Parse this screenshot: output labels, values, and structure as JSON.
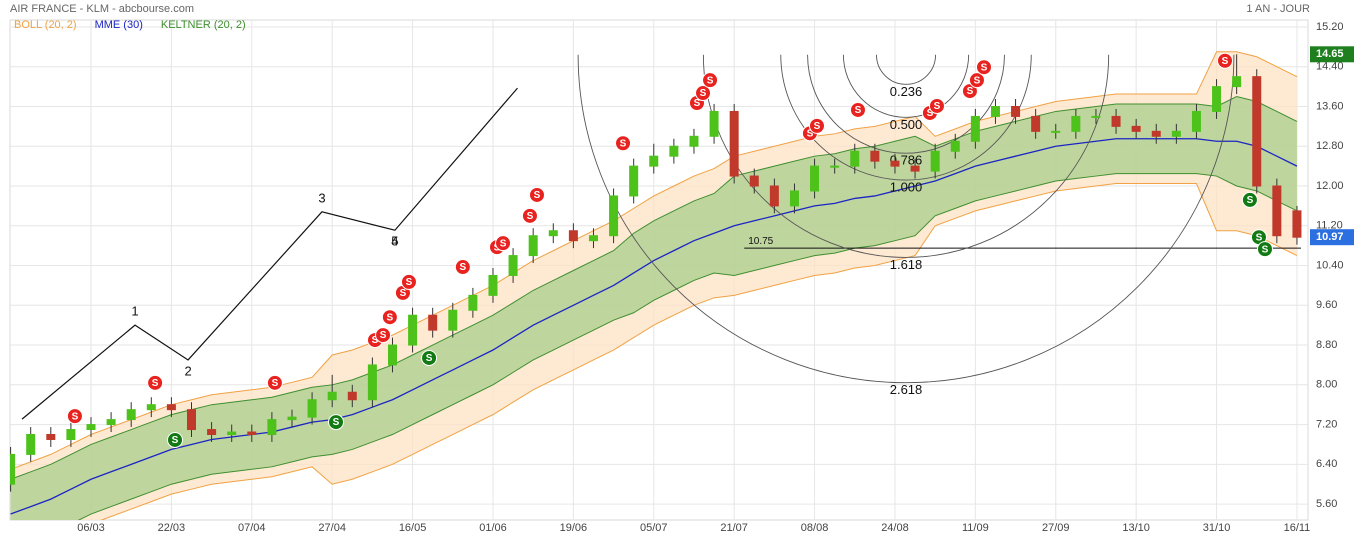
{
  "chart_data": {
    "type": "candlestick",
    "title": "AIR FRANCE - KLM - abcbourse.com",
    "period": "1 AN - JOUR",
    "xlim": [
      -0.03,
      64.55
    ],
    "ylim": [
      5.28,
      15.34
    ],
    "grid": true,
    "xticks": [
      {
        "value": 4,
        "label": "06/03"
      },
      {
        "value": 8,
        "label": "22/03"
      },
      {
        "value": 12,
        "label": "07/04"
      },
      {
        "value": 16,
        "label": "27/04"
      },
      {
        "value": 20,
        "label": "16/05"
      },
      {
        "value": 24,
        "label": "01/06"
      },
      {
        "value": 28,
        "label": "19/06"
      },
      {
        "value": 32,
        "label": "05/07"
      },
      {
        "value": 36,
        "label": "21/07"
      },
      {
        "value": 40,
        "label": "08/08"
      },
      {
        "value": 44,
        "label": "24/08"
      },
      {
        "value": 48,
        "label": "11/09"
      },
      {
        "value": 52,
        "label": "27/09"
      },
      {
        "value": 56,
        "label": "13/10"
      },
      {
        "value": 60,
        "label": "31/10"
      },
      {
        "value": 64,
        "label": "16/11"
      }
    ],
    "yticks": [
      {
        "value": 5.6,
        "label": "5.60"
      },
      {
        "value": 6.4,
        "label": "6.40"
      },
      {
        "value": 7.2,
        "label": "7.20"
      },
      {
        "value": 8.0,
        "label": "8.00"
      },
      {
        "value": 8.8,
        "label": "8.80"
      },
      {
        "value": 9.6,
        "label": "9.60"
      },
      {
        "value": 10.4,
        "label": "10.40"
      },
      {
        "value": 11.2,
        "label": "11.20"
      },
      {
        "value": 12.0,
        "label": "12.00"
      },
      {
        "value": 12.8,
        "label": "12.80"
      },
      {
        "value": 13.6,
        "label": "13.60"
      },
      {
        "value": 14.4,
        "label": "14.40"
      },
      {
        "value": 15.2,
        "label": "15.20"
      }
    ],
    "up_color": "#4cc21a",
    "down_color": "#c0392b",
    "candles": {
      "open": [
        6.0,
        6.6,
        7.0,
        6.9,
        7.1,
        7.2,
        7.3,
        7.5,
        7.6,
        7.5,
        7.1,
        7.0,
        7.05,
        7.0,
        7.3,
        7.35,
        7.7,
        7.85,
        7.7,
        8.4,
        8.8,
        9.4,
        9.1,
        9.5,
        9.8,
        10.2,
        10.6,
        11.0,
        11.1,
        10.9,
        11.0,
        11.8,
        12.4,
        12.6,
        12.8,
        13.0,
        13.5,
        12.2,
        12.0,
        11.6,
        11.9,
        12.4,
        12.4,
        12.7,
        12.5,
        12.4,
        12.3,
        12.7,
        12.9,
        13.4,
        13.6,
        13.4,
        13.1,
        13.1,
        13.4,
        13.4,
        13.2,
        13.1,
        13.0,
        13.1,
        13.5,
        14.0,
        14.2,
        12.0,
        11.5
      ],
      "high": [
        6.75,
        7.15,
        7.15,
        7.25,
        7.35,
        7.45,
        7.65,
        7.75,
        7.75,
        7.65,
        7.25,
        7.2,
        7.2,
        7.45,
        7.5,
        7.85,
        8.2,
        8.0,
        8.55,
        8.95,
        9.55,
        9.55,
        9.65,
        9.95,
        10.35,
        10.75,
        11.15,
        11.25,
        11.25,
        11.15,
        11.95,
        12.55,
        12.85,
        12.95,
        13.15,
        13.65,
        13.65,
        12.35,
        12.15,
        12.05,
        12.55,
        12.55,
        12.85,
        12.85,
        12.65,
        12.55,
        12.85,
        13.05,
        13.55,
        13.75,
        13.75,
        13.55,
        13.25,
        13.55,
        13.55,
        13.55,
        13.35,
        13.25,
        13.25,
        13.65,
        14.15,
        14.65,
        14.35,
        12.15,
        11.6
      ],
      "low": [
        5.85,
        6.45,
        6.75,
        6.75,
        6.95,
        7.05,
        7.15,
        7.35,
        7.35,
        6.95,
        6.85,
        6.85,
        6.85,
        6.85,
        7.15,
        7.2,
        7.55,
        7.55,
        7.55,
        8.25,
        8.65,
        8.95,
        8.95,
        9.35,
        9.65,
        10.05,
        10.45,
        10.85,
        10.75,
        10.75,
        10.85,
        11.65,
        12.25,
        12.45,
        12.65,
        12.85,
        12.05,
        11.85,
        11.45,
        11.45,
        11.75,
        12.25,
        12.25,
        12.35,
        12.25,
        12.15,
        12.15,
        12.55,
        12.75,
        13.25,
        13.25,
        12.95,
        12.95,
        12.95,
        13.25,
        13.05,
        12.95,
        12.85,
        12.85,
        12.95,
        13.35,
        13.85,
        11.85,
        10.85,
        10.82
      ],
      "close": [
        6.6,
        7.0,
        6.9,
        7.1,
        7.2,
        7.3,
        7.5,
        7.6,
        7.5,
        7.1,
        7.0,
        7.05,
        7.0,
        7.3,
        7.35,
        7.7,
        7.85,
        7.7,
        8.4,
        8.8,
        9.4,
        9.1,
        9.5,
        9.8,
        10.2,
        10.6,
        11.0,
        11.1,
        10.9,
        11.0,
        11.8,
        12.4,
        12.6,
        12.8,
        13.0,
        13.5,
        12.2,
        12.0,
        11.6,
        11.9,
        12.4,
        12.4,
        12.7,
        12.5,
        12.4,
        12.3,
        12.7,
        12.9,
        13.4,
        13.6,
        13.4,
        13.1,
        13.1,
        13.4,
        13.4,
        13.2,
        13.1,
        13.0,
        13.1,
        13.5,
        14.0,
        14.2,
        12.0,
        11.0,
        10.97
      ]
    },
    "indicators": [
      {
        "name": "BOLL (20, 2)",
        "kind": "band",
        "color": "#f0a244",
        "fill": "#fde1c4",
        "upper": [
          6.3,
          6.45,
          6.6,
          6.8,
          7.0,
          7.15,
          7.3,
          7.45,
          7.6,
          7.7,
          7.8,
          7.85,
          7.9,
          7.95,
          8.05,
          8.15,
          8.6,
          8.7,
          8.85,
          9.0,
          9.2,
          9.4,
          9.6,
          9.8,
          10.0,
          10.25,
          10.5,
          10.7,
          10.9,
          11.1,
          11.3,
          11.55,
          11.8,
          12.0,
          12.2,
          12.35,
          12.6,
          12.7,
          12.8,
          12.9,
          13.0,
          13.05,
          13.15,
          13.2,
          13.3,
          13.4,
          13.0,
          13.15,
          13.3,
          13.4,
          13.5,
          13.6,
          13.7,
          13.75,
          13.8,
          13.85,
          13.85,
          13.85,
          13.85,
          13.85,
          14.7,
          14.7,
          14.6,
          14.4,
          14.2
        ],
        "lower": [
          4.5,
          4.65,
          4.8,
          5.0,
          5.2,
          5.35,
          5.5,
          5.65,
          5.8,
          5.9,
          6.0,
          6.05,
          6.1,
          6.15,
          6.25,
          6.35,
          6.0,
          6.1,
          6.25,
          6.4,
          6.6,
          6.8,
          7.0,
          7.2,
          7.4,
          7.65,
          7.9,
          8.1,
          8.3,
          8.5,
          8.7,
          8.95,
          9.2,
          9.4,
          9.6,
          9.75,
          9.8,
          9.9,
          10.0,
          10.1,
          10.2,
          10.25,
          10.35,
          10.4,
          10.5,
          10.6,
          11.2,
          11.35,
          11.5,
          11.6,
          11.7,
          11.8,
          11.9,
          11.95,
          12.0,
          12.05,
          12.05,
          12.05,
          12.05,
          12.05,
          11.1,
          11.1,
          11.0,
          10.8,
          10.6
        ]
      },
      {
        "name": "KELTNER (20, 2)",
        "kind": "band",
        "color": "#3f8f2f",
        "fill": "#a9cd8c",
        "upper": [
          6.1,
          6.25,
          6.4,
          6.6,
          6.8,
          6.95,
          7.1,
          7.25,
          7.4,
          7.5,
          7.6,
          7.65,
          7.7,
          7.75,
          7.85,
          7.95,
          8.0,
          8.1,
          8.25,
          8.4,
          8.6,
          8.8,
          9.0,
          9.2,
          9.4,
          9.65,
          9.9,
          10.1,
          10.3,
          10.5,
          10.7,
          11.05,
          11.3,
          11.5,
          11.7,
          11.85,
          12.2,
          12.3,
          12.4,
          12.5,
          12.6,
          12.65,
          12.75,
          12.8,
          12.9,
          13.0,
          12.8,
          12.95,
          13.1,
          13.2,
          13.3,
          13.4,
          13.5,
          13.55,
          13.6,
          13.65,
          13.65,
          13.65,
          13.65,
          13.65,
          13.6,
          13.8,
          13.7,
          13.5,
          13.3
        ],
        "lower": [
          4.7,
          4.85,
          5.0,
          5.2,
          5.4,
          5.55,
          5.7,
          5.85,
          6.0,
          6.1,
          6.2,
          6.25,
          6.3,
          6.35,
          6.45,
          6.55,
          6.6,
          6.7,
          6.85,
          7.0,
          7.2,
          7.4,
          7.6,
          7.8,
          8.0,
          8.25,
          8.5,
          8.7,
          8.9,
          9.1,
          9.3,
          9.45,
          9.7,
          9.9,
          10.1,
          10.25,
          10.2,
          10.3,
          10.4,
          10.5,
          10.6,
          10.65,
          10.75,
          10.8,
          10.9,
          11.0,
          11.4,
          11.55,
          11.7,
          11.8,
          11.9,
          12.0,
          12.1,
          12.15,
          12.2,
          12.25,
          12.25,
          12.25,
          12.25,
          12.25,
          12.2,
          12.0,
          11.9,
          11.7,
          11.5
        ]
      },
      {
        "name": "MME (30)",
        "kind": "line",
        "color": "#1a25c4",
        "values": [
          5.4,
          5.55,
          5.7,
          5.9,
          6.1,
          6.25,
          6.4,
          6.55,
          6.7,
          6.8,
          6.9,
          6.95,
          7.0,
          7.05,
          7.15,
          7.25,
          7.3,
          7.4,
          7.55,
          7.7,
          7.9,
          8.1,
          8.3,
          8.5,
          8.7,
          8.95,
          9.2,
          9.4,
          9.6,
          9.8,
          10.0,
          10.25,
          10.5,
          10.7,
          10.9,
          11.05,
          11.2,
          11.3,
          11.4,
          11.5,
          11.6,
          11.65,
          11.75,
          11.8,
          11.9,
          12.0,
          12.1,
          12.25,
          12.4,
          12.5,
          12.6,
          12.7,
          12.8,
          12.85,
          12.9,
          12.95,
          12.95,
          12.95,
          12.95,
          12.95,
          12.9,
          12.9,
          12.8,
          12.6,
          12.4
        ]
      }
    ],
    "legend_order": [
      0,
      2,
      1
    ],
    "signals": [
      {
        "x": 3.2,
        "y": 7.37,
        "label": "S",
        "color": "#e8231f"
      },
      {
        "x": 7.19,
        "y": 8.04,
        "label": "S",
        "color": "#e8231f"
      },
      {
        "x": 13.15,
        "y": 8.04,
        "label": "S",
        "color": "#e8231f"
      },
      {
        "x": 18.13,
        "y": 8.9,
        "label": "S",
        "color": "#e8231f"
      },
      {
        "x": 18.53,
        "y": 9.0,
        "label": "S",
        "color": "#e8231f"
      },
      {
        "x": 18.87,
        "y": 9.36,
        "label": "S",
        "color": "#e8231f"
      },
      {
        "x": 19.52,
        "y": 9.85,
        "label": "S",
        "color": "#e8231f"
      },
      {
        "x": 19.82,
        "y": 10.07,
        "label": "S",
        "color": "#e8231f"
      },
      {
        "x": 22.5,
        "y": 10.37,
        "label": "S",
        "color": "#e8231f"
      },
      {
        "x": 24.2,
        "y": 10.77,
        "label": "S",
        "color": "#e8231f"
      },
      {
        "x": 24.5,
        "y": 10.85,
        "label": "S",
        "color": "#e8231f"
      },
      {
        "x": 25.84,
        "y": 11.4,
        "label": "S",
        "color": "#e8231f"
      },
      {
        "x": 26.19,
        "y": 11.82,
        "label": "S",
        "color": "#e8231f"
      },
      {
        "x": 30.47,
        "y": 12.86,
        "label": "S",
        "color": "#e8231f"
      },
      {
        "x": 34.15,
        "y": 13.67,
        "label": "S",
        "color": "#e8231f"
      },
      {
        "x": 34.45,
        "y": 13.87,
        "label": "S",
        "color": "#e8231f"
      },
      {
        "x": 34.8,
        "y": 14.13,
        "label": "S",
        "color": "#e8231f"
      },
      {
        "x": 39.77,
        "y": 13.06,
        "label": "S",
        "color": "#e8231f"
      },
      {
        "x": 40.12,
        "y": 13.21,
        "label": "S",
        "color": "#e8231f"
      },
      {
        "x": 42.16,
        "y": 13.53,
        "label": "S",
        "color": "#e8231f"
      },
      {
        "x": 45.74,
        "y": 13.47,
        "label": "S",
        "color": "#e8231f"
      },
      {
        "x": 46.09,
        "y": 13.61,
        "label": "S",
        "color": "#e8231f"
      },
      {
        "x": 47.73,
        "y": 13.91,
        "label": "S",
        "color": "#e8231f"
      },
      {
        "x": 48.08,
        "y": 14.13,
        "label": "S",
        "color": "#e8231f"
      },
      {
        "x": 48.43,
        "y": 14.39,
        "label": "S",
        "color": "#e8231f"
      },
      {
        "x": 60.42,
        "y": 14.52,
        "label": "S",
        "color": "#e8231f"
      },
      {
        "x": 8.18,
        "y": 6.89,
        "label": "S",
        "color": "#127a12"
      },
      {
        "x": 16.19,
        "y": 7.25,
        "label": "S",
        "color": "#127a12"
      },
      {
        "x": 20.82,
        "y": 8.54,
        "label": "S",
        "color": "#127a12"
      },
      {
        "x": 61.66,
        "y": 11.72,
        "label": "S",
        "color": "#127a12"
      },
      {
        "x": 62.11,
        "y": 10.97,
        "label": "S",
        "color": "#127a12"
      },
      {
        "x": 62.41,
        "y": 10.73,
        "label": "S",
        "color": "#127a12"
      }
    ],
    "elliott": {
      "x": [
        0.57,
        6.19,
        8.83,
        15.49,
        19.12,
        25.22
      ],
      "y": [
        7.31,
        9.2,
        8.5,
        11.48,
        11.11,
        13.97
      ],
      "labels": [
        {
          "at": 1,
          "text": "1",
          "side": "above"
        },
        {
          "at": 2,
          "text": "2",
          "side": "below"
        },
        {
          "at": 3,
          "text": "3",
          "side": "above"
        },
        {
          "at": 4,
          "text": "4",
          "side": "below"
        },
        {
          "at": 4,
          "text": "5",
          "side": "below"
        }
      ]
    },
    "fibonacci": {
      "center_x": 44.55,
      "center_y": 14.64,
      "radius": 2.52,
      "levels": [
        {
          "value": 0.236,
          "label": "0.236"
        },
        {
          "value": 0.5,
          "label": "0.500"
        },
        {
          "value": 0.786,
          "label": "0.786"
        },
        {
          "value": 1.0,
          "label": "1.000"
        },
        {
          "value": 1.618,
          "label": "1.618"
        },
        {
          "value": 2.618,
          "label": "2.618"
        }
      ]
    },
    "hline": {
      "value": 10.75,
      "label": "10.75",
      "x": [
        36.5,
        64.2
      ]
    },
    "price_tags": [
      {
        "value": 14.65,
        "label": "14.65",
        "color": "#1d7f1d"
      },
      {
        "value": 10.97,
        "label": "10.97",
        "color": "#2b6fe0"
      }
    ]
  }
}
